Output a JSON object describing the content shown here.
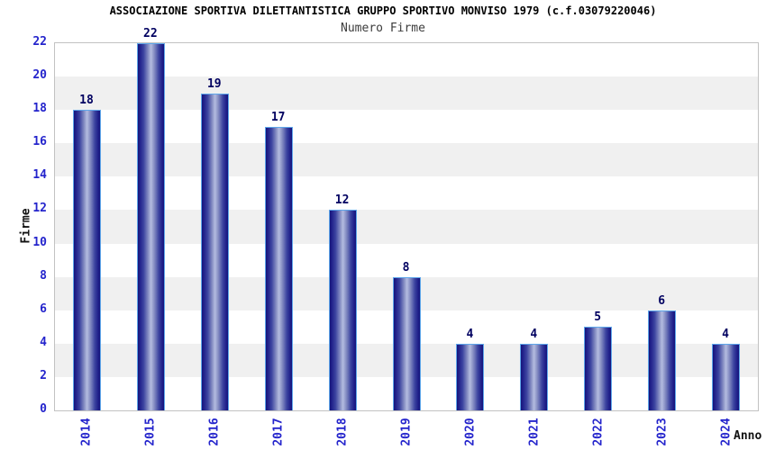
{
  "chart_data": {
    "type": "bar",
    "title": "ASSOCIAZIONE SPORTIVA DILETTANTISTICA GRUPPO SPORTIVO MONVISO 1979 (c.f.03079220046)",
    "subtitle": "Numero Firme",
    "xlabel": "Anno",
    "ylabel": "Firme",
    "categories": [
      "2014",
      "2015",
      "2016",
      "2017",
      "2018",
      "2019",
      "2020",
      "2021",
      "2022",
      "2023",
      "2024"
    ],
    "values": [
      18,
      22,
      19,
      17,
      12,
      8,
      4,
      4,
      5,
      6,
      4
    ],
    "ylim": [
      0,
      22
    ],
    "ytick_step": 2,
    "legend": false,
    "grid": "alternating horizontal bands every 2 units",
    "colors": {
      "bar_dark": "#20208a",
      "bar_light": "#b4bce0",
      "bar_border": "#5ea6ea",
      "tick_label": "#2424cc",
      "value_label": "#000060",
      "axis_label": "#111111",
      "title": "#000000",
      "subtitle": "#3c3c3c",
      "band_gray": "#f0f0f0",
      "band_white": "#ffffff",
      "plot_border": "#c2c2c2"
    }
  }
}
